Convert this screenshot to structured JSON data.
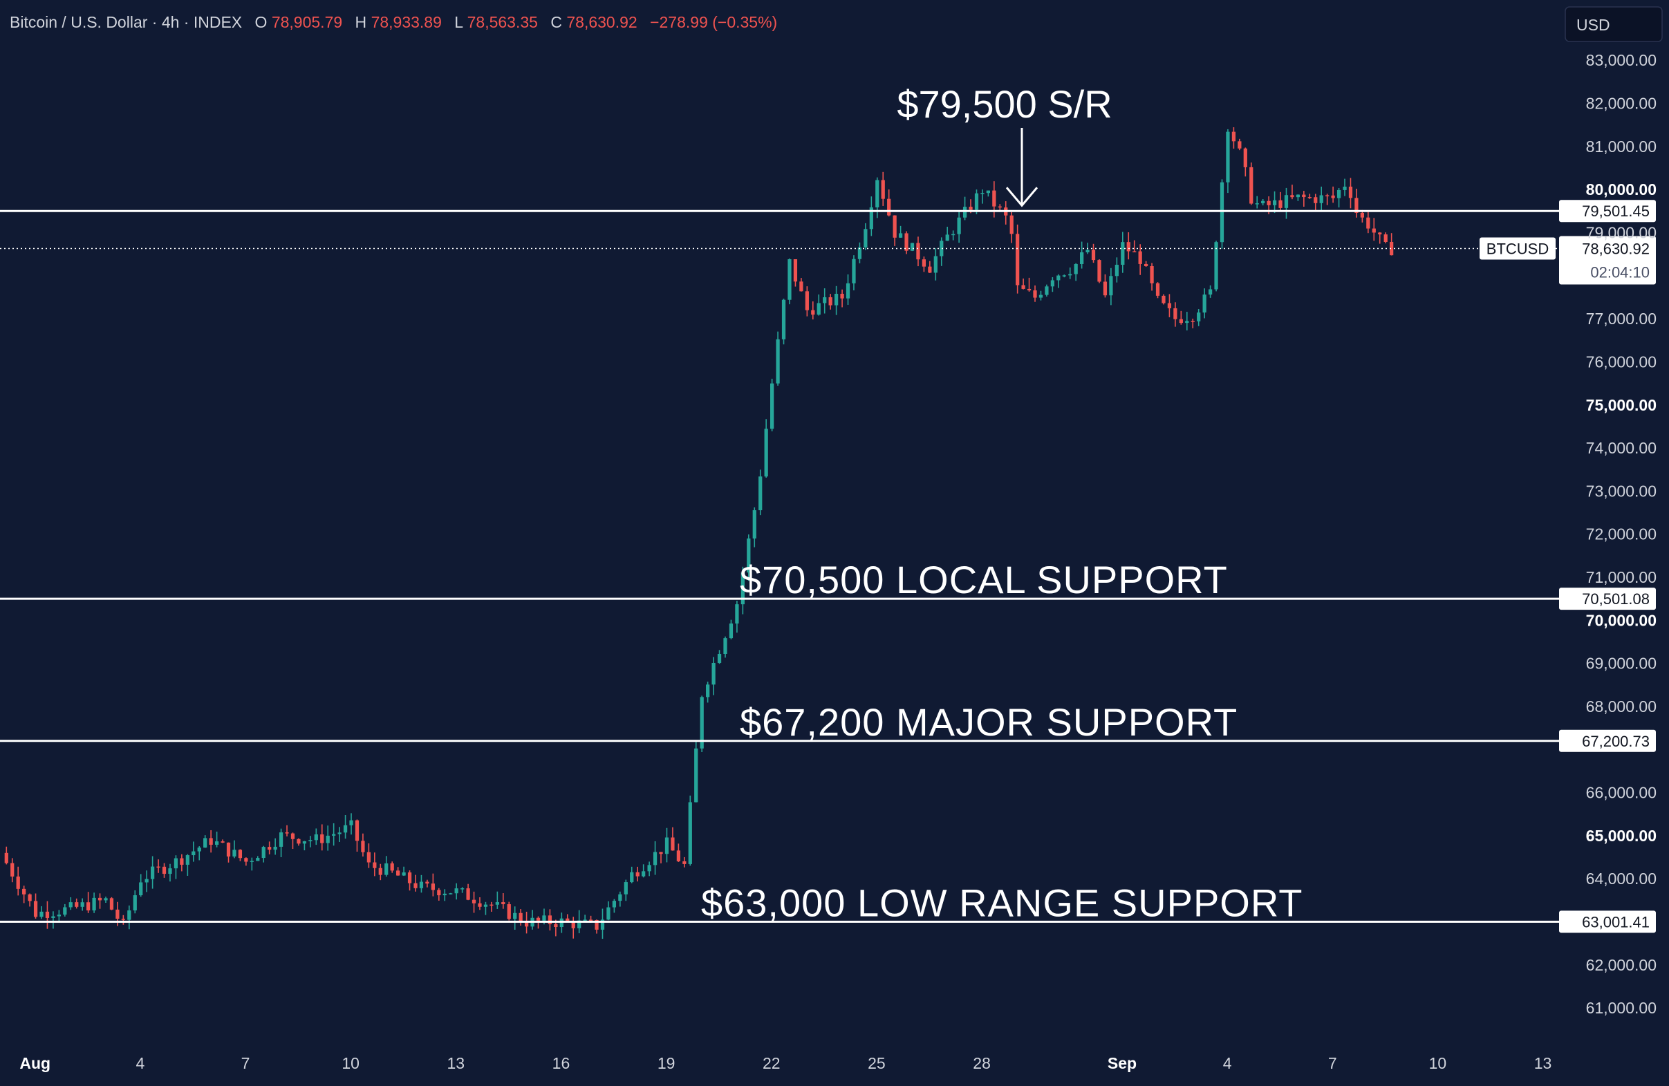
{
  "header": {
    "symbol_title": "Bitcoin / U.S. Dollar · 4h · INDEX",
    "open_label": "O",
    "open_value": "78,905.79",
    "high_label": "H",
    "high_value": "78,933.89",
    "low_label": "L",
    "low_value": "78,563.35",
    "close_label": "C",
    "close_value": "78,630.92",
    "change": "−278.99 (−0.35%)"
  },
  "currency_button": "USD",
  "colors": {
    "background": "#101a33",
    "up": "#26a69a",
    "down": "#ef5350",
    "text": "#d1d4dc",
    "lines": "#ffffff"
  },
  "chart_data": {
    "type": "candlestick",
    "title": "Bitcoin / U.S. Dollar · 4h · INDEX",
    "timeframe": "4h",
    "x_tick_labels": [
      {
        "label": "Aug",
        "t": 0.9,
        "bold": true
      },
      {
        "label": "4",
        "t": 3.9
      },
      {
        "label": "7",
        "t": 6.9
      },
      {
        "label": "10",
        "t": 9.9
      },
      {
        "label": "13",
        "t": 12.9
      },
      {
        "label": "16",
        "t": 15.9
      },
      {
        "label": "19",
        "t": 18.9
      },
      {
        "label": "22",
        "t": 21.9
      },
      {
        "label": "25",
        "t": 24.9
      },
      {
        "label": "28",
        "t": 27.9
      },
      {
        "label": "Sep",
        "t": 31.9,
        "bold": true
      },
      {
        "label": "4",
        "t": 34.9
      },
      {
        "label": "7",
        "t": 37.9
      },
      {
        "label": "10",
        "t": 40.9
      },
      {
        "label": "13",
        "t": 43.9
      }
    ],
    "x_range_days": [
      -0.1,
      44.5
    ],
    "y_range": [
      60200,
      84400
    ],
    "y_tick_labels": [
      {
        "value": 61000,
        "label": "61,000.00"
      },
      {
        "value": 62000,
        "label": "62,000.00"
      },
      {
        "value": 64000,
        "label": "64,000.00"
      },
      {
        "value": 65000,
        "label": "65,000.00",
        "bold": true
      },
      {
        "value": 66000,
        "label": "66,000.00"
      },
      {
        "value": 68000,
        "label": "68,000.00"
      },
      {
        "value": 69000,
        "label": "69,000.00"
      },
      {
        "value": 70000,
        "label": "70,000.00",
        "bold": true
      },
      {
        "value": 71000,
        "label": "71,000.00"
      },
      {
        "value": 72000,
        "label": "72,000.00"
      },
      {
        "value": 73000,
        "label": "73,000.00"
      },
      {
        "value": 74000,
        "label": "74,000.00"
      },
      {
        "value": 75000,
        "label": "75,000.00",
        "bold": true
      },
      {
        "value": 76000,
        "label": "76,000.00"
      },
      {
        "value": 77000,
        "label": "77,000.00"
      },
      {
        "value": 79000,
        "label": "79,000.00"
      },
      {
        "value": 80000,
        "label": "80,000.00",
        "bold": true
      },
      {
        "value": 81000,
        "label": "81,000.00"
      },
      {
        "value": 82000,
        "label": "82,000.00"
      },
      {
        "value": 83000,
        "label": "83,000.00"
      }
    ],
    "levels": [
      {
        "value": 79501.45,
        "axis_label": "79,501.45",
        "annotation": "$79,500 S/R",
        "annotation_style": "arrow"
      },
      {
        "value": 70501.08,
        "axis_label": "70,501.08",
        "annotation": "$70,500 LOCAL SUPPORT"
      },
      {
        "value": 67200.73,
        "axis_label": "67,200.73",
        "annotation": "$67,200 MAJOR SUPPORT"
      },
      {
        "value": 63001.41,
        "axis_label": "63,001.41",
        "annotation": "$63,000 LOW RANGE SUPPORT"
      }
    ],
    "last_price": {
      "value": 78630.92,
      "symbol": "BTCUSD",
      "label": "78,630.92",
      "countdown": "02:04:10"
    },
    "price_path": [
      [
        0,
        64600
      ],
      [
        1,
        63200
      ],
      [
        2,
        63300
      ],
      [
        3,
        63500
      ],
      [
        3.5,
        62900
      ],
      [
        4,
        64000
      ],
      [
        5,
        64400
      ],
      [
        6,
        64900
      ],
      [
        7,
        64400
      ],
      [
        8,
        65000
      ],
      [
        9,
        64900
      ],
      [
        10,
        65200
      ],
      [
        10.5,
        64300
      ],
      [
        11,
        64200
      ],
      [
        12,
        63800
      ],
      [
        13,
        63700
      ],
      [
        14,
        63400
      ],
      [
        15,
        63000
      ],
      [
        16,
        63000
      ],
      [
        17,
        62900
      ],
      [
        18,
        64100
      ],
      [
        19,
        64800
      ],
      [
        19.5,
        64300
      ],
      [
        20,
        68300
      ],
      [
        21,
        70400
      ],
      [
        21.6,
        73000
      ],
      [
        22,
        75500
      ],
      [
        22.5,
        78300
      ],
      [
        23,
        77200
      ],
      [
        24,
        77500
      ],
      [
        24.7,
        79300
      ],
      [
        25,
        80300
      ],
      [
        25.5,
        79000
      ],
      [
        26,
        78600
      ],
      [
        26.5,
        78200
      ],
      [
        27,
        78900
      ],
      [
        28,
        80000
      ],
      [
        28.8,
        79200
      ],
      [
        29,
        77700
      ],
      [
        29.5,
        77500
      ],
      [
        30,
        78000
      ],
      [
        30.6,
        78200
      ],
      [
        31,
        78600
      ],
      [
        31.5,
        77500
      ],
      [
        32,
        78700
      ],
      [
        32.5,
        78400
      ],
      [
        33,
        77400
      ],
      [
        33.5,
        77000
      ],
      [
        34,
        77100
      ],
      [
        34.5,
        77600
      ],
      [
        35,
        81500
      ],
      [
        35.4,
        80700
      ],
      [
        35.7,
        79700
      ],
      [
        36,
        79600
      ],
      [
        37,
        79800
      ],
      [
        38,
        79800
      ],
      [
        38.4,
        80200
      ],
      [
        38.7,
        79400
      ],
      [
        39,
        79200
      ],
      [
        39.5,
        78631
      ]
    ]
  }
}
